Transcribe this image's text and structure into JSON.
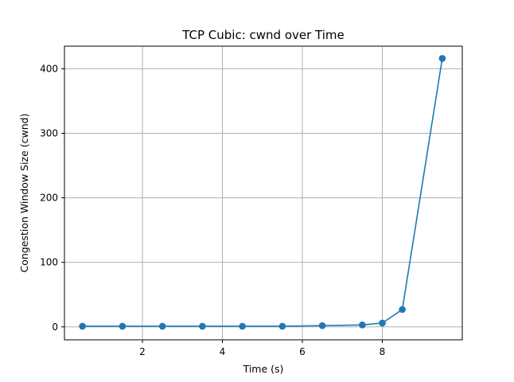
{
  "chart_data": {
    "type": "line",
    "title": "TCP Cubic: cwnd over Time",
    "xlabel": "Time (s)",
    "ylabel": "Congestion Window Size (cwnd)",
    "xlim": [
      0.05,
      10.0
    ],
    "ylim": [
      -20,
      435
    ],
    "xticks": [
      2,
      4,
      6,
      8
    ],
    "yticks": [
      0,
      100,
      200,
      300,
      400
    ],
    "grid": true,
    "marker": "circle",
    "color": "#1f77b4",
    "series": [
      {
        "x": [
          0.5,
          1.5,
          2.5,
          3.5,
          4.5,
          5.5,
          6.5,
          7.5,
          8.0,
          8.5,
          9.5
        ],
        "y": [
          1,
          1,
          1,
          1,
          1,
          1,
          2,
          3,
          6,
          27,
          416
        ]
      }
    ]
  }
}
